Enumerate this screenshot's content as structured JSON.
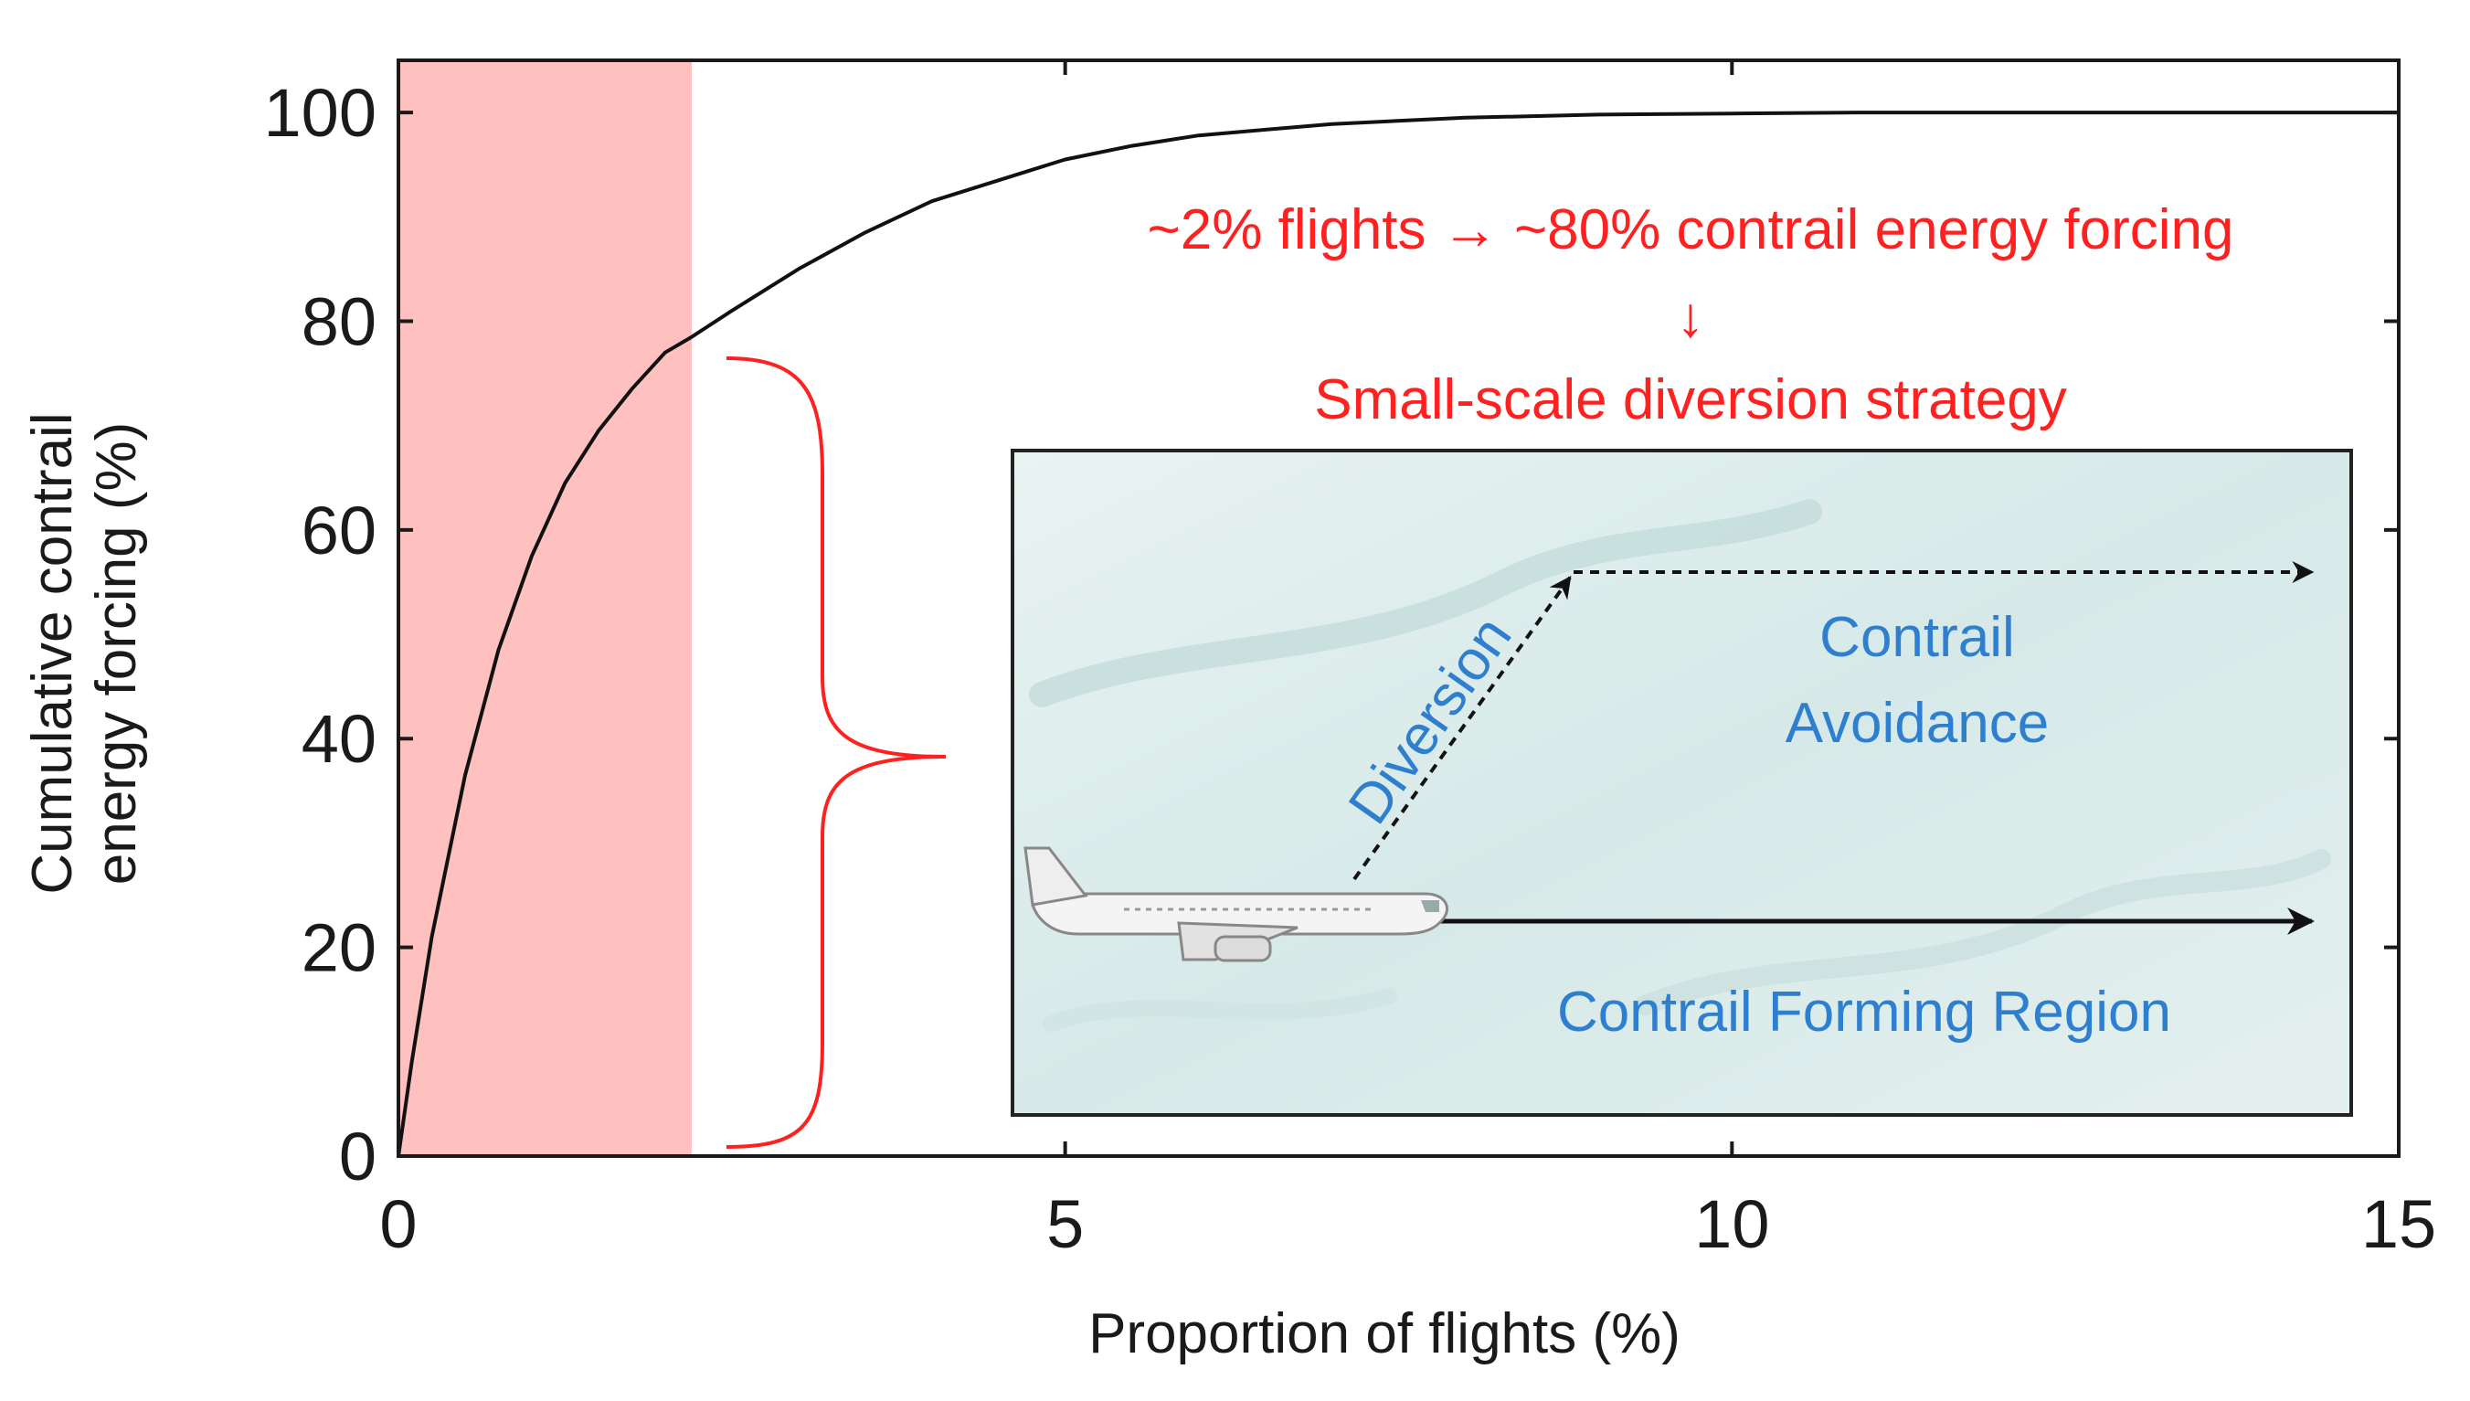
{
  "chart_data": {
    "type": "line",
    "xlabel": "Proportion of flights (%)",
    "ylabel_line1": "Cumulative contrail",
    "ylabel_line2": "energy forcing (%)",
    "xlim": [
      0,
      15
    ],
    "ylim": [
      0,
      105
    ],
    "x_ticks": [
      0,
      5,
      10,
      15
    ],
    "y_ticks": [
      0,
      20,
      40,
      60,
      80,
      100
    ],
    "x_tick_labels": [
      "0",
      "5",
      "10",
      "15"
    ],
    "y_tick_labels": [
      "0",
      "20",
      "40",
      "60",
      "80",
      "100"
    ],
    "grid": false,
    "series": [
      {
        "color": "#111111",
        "x": [
          0,
          0.1,
          0.25,
          0.5,
          0.75,
          1.0,
          1.25,
          1.5,
          1.75,
          2.0,
          2.2,
          2.5,
          3.0,
          3.5,
          4.0,
          4.5,
          5.0,
          5.5,
          6.0,
          7.0,
          8.0,
          9.0,
          10.0,
          11.0,
          12.0,
          13.0,
          14.0,
          15.0
        ],
        "y": [
          0,
          9,
          21,
          36.5,
          48.5,
          57.5,
          64.5,
          69.5,
          73.5,
          77,
          78.5,
          81,
          85,
          88.5,
          91.5,
          93.5,
          95.5,
          96.8,
          97.8,
          98.9,
          99.5,
          99.8,
          99.9,
          100,
          100,
          100,
          100,
          100
        ]
      }
    ],
    "highlight_band": {
      "x_from": 0,
      "x_to": 2.2,
      "color": "#ffc0c0"
    },
    "annotations": {
      "line1": "~2% flights → ~80% contrail energy forcing",
      "arrow": "↓",
      "line2": "Small-scale diversion strategy",
      "color": "#ff2020"
    },
    "inset": {
      "diversion_label": "Diversion",
      "avoidance_line1": "Contrail",
      "avoidance_line2": "Avoidance",
      "forming_label": "Contrail Forming Region",
      "text_color": "#2f7fd0",
      "sky_color": "#dcecec"
    }
  }
}
